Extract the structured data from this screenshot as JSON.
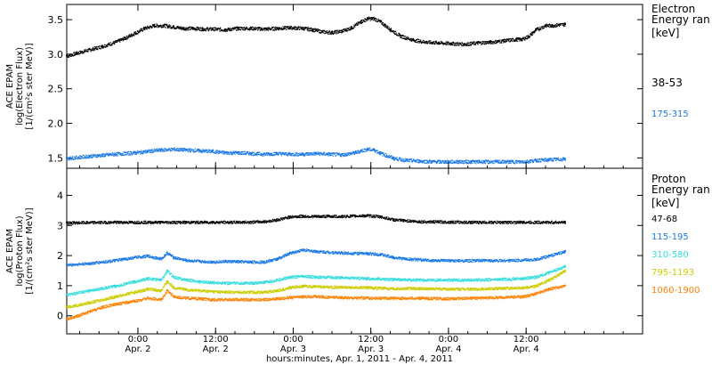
{
  "figure": {
    "x_axis_title": "hours:minutes, Apr.  1, 2011 - Apr.  4, 2011",
    "time_ticks": [
      {
        "x": 38.5,
        "hh": "0:00",
        "day": "Apr. 2"
      },
      {
        "x": 50.5,
        "hh": "12:00",
        "day": "Apr. 2"
      },
      {
        "x": 62.5,
        "hh": "0:00",
        "day": "Apr. 3"
      },
      {
        "x": 74.5,
        "hh": "12:00",
        "day": "Apr. 3"
      },
      {
        "x": 86.5,
        "hh": "0:00",
        "day": "Apr. 4"
      },
      {
        "x": 98.5,
        "hh": "12:00",
        "day": "Apr. 4"
      }
    ],
    "x_range": [
      27.5,
      116.5
    ]
  },
  "chart_data": [
    {
      "type": "scatter",
      "ylabel_lines": [
        "ACE EPAM",
        "log(Electron Flux)",
        "[1/(cm²s ster MeV)]"
      ],
      "ylim": [
        1.35,
        3.72
      ],
      "yticks": [
        1.5,
        2.0,
        2.5,
        3.0,
        3.5
      ],
      "yticklabels": [
        "1.5",
        "2.0",
        "2.5",
        "3.0",
        "3.5"
      ],
      "legend_title_lines": [
        "Electron",
        "Energy ran",
        "[keV]"
      ],
      "series": [
        {
          "name": "38-53",
          "color": "#000000",
          "x": [
            27.5,
            29,
            31,
            33,
            35,
            36.5,
            38,
            39.5,
            41,
            42.5,
            44,
            45.5,
            47,
            48.5,
            50,
            52,
            54,
            56,
            58,
            60,
            62,
            64,
            65.5,
            67,
            68.5,
            70,
            71.5,
            73,
            74,
            75,
            76,
            77.5,
            79,
            81,
            83,
            85,
            87,
            89,
            91,
            93,
            95,
            97,
            97.8,
            98.8,
            100,
            101.5,
            102.5,
            103.5,
            104.5
          ],
          "y": [
            2.98,
            3.02,
            3.07,
            3.12,
            3.18,
            3.24,
            3.31,
            3.38,
            3.42,
            3.42,
            3.4,
            3.38,
            3.38,
            3.37,
            3.37,
            3.36,
            3.38,
            3.38,
            3.37,
            3.38,
            3.39,
            3.38,
            3.36,
            3.33,
            3.32,
            3.34,
            3.39,
            3.48,
            3.52,
            3.52,
            3.47,
            3.36,
            3.27,
            3.21,
            3.18,
            3.17,
            3.16,
            3.15,
            3.17,
            3.18,
            3.2,
            3.22,
            3.22,
            3.26,
            3.36,
            3.42,
            3.42,
            3.43,
            3.44
          ]
        },
        {
          "name": "175-315",
          "color": "#1a78e6",
          "x": [
            27.5,
            31,
            35,
            38,
            40,
            42,
            44,
            46,
            48,
            50,
            52,
            54,
            56,
            58,
            60,
            62,
            64,
            66,
            68,
            70,
            72,
            73,
            74,
            75,
            76,
            78,
            80,
            82,
            84,
            86,
            88,
            90,
            92,
            94,
            96,
            98,
            100,
            102,
            104.5
          ],
          "y": [
            1.5,
            1.53,
            1.56,
            1.58,
            1.6,
            1.62,
            1.63,
            1.62,
            1.61,
            1.6,
            1.58,
            1.58,
            1.57,
            1.56,
            1.57,
            1.56,
            1.56,
            1.57,
            1.56,
            1.55,
            1.58,
            1.61,
            1.63,
            1.62,
            1.57,
            1.5,
            1.47,
            1.46,
            1.45,
            1.45,
            1.45,
            1.45,
            1.45,
            1.45,
            1.45,
            1.45,
            1.47,
            1.48,
            1.49
          ]
        }
      ]
    },
    {
      "type": "scatter",
      "ylabel_lines": [
        "ACE EPAM",
        "log(Proton Flux)",
        "[1/(cm²s ster MeV)]"
      ],
      "ylim": [
        -0.6,
        4.9
      ],
      "yticks": [
        0,
        1,
        2,
        3,
        4
      ],
      "yticklabels": [
        "0",
        "1",
        "2",
        "3",
        "4"
      ],
      "legend_title_lines": [
        "Proton",
        "Energy ran",
        "[keV]"
      ],
      "series": [
        {
          "name": "47-68",
          "color": "#000000",
          "x": [
            27.5,
            35,
            42,
            46,
            50,
            54,
            58,
            60,
            62,
            64,
            66,
            68,
            70,
            72,
            74,
            76,
            78,
            82,
            90,
            98,
            104.5
          ],
          "y": [
            3.1,
            3.12,
            3.12,
            3.12,
            3.12,
            3.12,
            3.14,
            3.2,
            3.3,
            3.32,
            3.31,
            3.32,
            3.31,
            3.33,
            3.34,
            3.3,
            3.2,
            3.14,
            3.12,
            3.12,
            3.12
          ]
        },
        {
          "name": "115-195",
          "color": "#1a78e6",
          "x": [
            27.5,
            31,
            35,
            38,
            40,
            42,
            43,
            44,
            46,
            48,
            50,
            52,
            56,
            58,
            60,
            62,
            64,
            66,
            70,
            74,
            76,
            78,
            80,
            84,
            88,
            92,
            96,
            100,
            102,
            104.5
          ],
          "y": [
            1.7,
            1.75,
            1.85,
            1.95,
            2.0,
            1.9,
            2.1,
            1.95,
            1.85,
            1.82,
            1.8,
            1.82,
            1.8,
            1.8,
            1.9,
            2.1,
            2.2,
            2.15,
            2.1,
            2.08,
            2.05,
            1.95,
            1.9,
            1.85,
            1.84,
            1.85,
            1.85,
            1.88,
            2.0,
            2.15
          ]
        },
        {
          "name": "310-580",
          "color": "#33dddd",
          "x": [
            27.5,
            31,
            35,
            38,
            40,
            42,
            43,
            44,
            46,
            48,
            50,
            52,
            56,
            58,
            60,
            62,
            64,
            66,
            70,
            74,
            78,
            82,
            86,
            90,
            94,
            98,
            100,
            102,
            104.5
          ],
          "y": [
            0.7,
            0.85,
            1.0,
            1.15,
            1.25,
            1.2,
            1.5,
            1.3,
            1.2,
            1.15,
            1.12,
            1.1,
            1.1,
            1.12,
            1.2,
            1.3,
            1.32,
            1.3,
            1.28,
            1.25,
            1.22,
            1.2,
            1.2,
            1.2,
            1.22,
            1.25,
            1.3,
            1.45,
            1.65
          ]
        },
        {
          "name": "795-1193",
          "color": "#cccc00",
          "x": [
            27.5,
            31,
            35,
            38,
            40,
            42,
            43,
            44,
            46,
            48,
            50,
            52,
            56,
            58,
            60,
            62,
            64,
            66,
            70,
            74,
            78,
            82,
            86,
            90,
            94,
            98,
            100,
            102,
            104.5
          ],
          "y": [
            0.3,
            0.45,
            0.65,
            0.8,
            0.9,
            0.85,
            1.15,
            0.95,
            0.88,
            0.85,
            0.82,
            0.8,
            0.8,
            0.8,
            0.85,
            0.95,
            1.0,
            0.98,
            0.96,
            0.95,
            0.92,
            0.92,
            0.9,
            0.9,
            0.92,
            0.95,
            1.0,
            1.2,
            1.5
          ]
        },
        {
          "name": "1060-1900",
          "color": "#ff8000",
          "x": [
            27.5,
            29,
            31,
            33,
            35,
            38,
            40,
            42,
            43,
            44,
            46,
            48,
            50,
            52,
            56,
            58,
            60,
            62,
            64,
            66,
            70,
            74,
            78,
            82,
            86,
            90,
            94,
            98,
            100,
            102,
            104.5
          ],
          "y": [
            -0.1,
            0.0,
            0.15,
            0.3,
            0.4,
            0.5,
            0.6,
            0.55,
            0.85,
            0.65,
            0.6,
            0.58,
            0.55,
            0.55,
            0.55,
            0.55,
            0.58,
            0.62,
            0.65,
            0.65,
            0.62,
            0.6,
            0.6,
            0.6,
            0.58,
            0.6,
            0.62,
            0.65,
            0.75,
            0.9,
            1.0
          ]
        }
      ]
    }
  ]
}
